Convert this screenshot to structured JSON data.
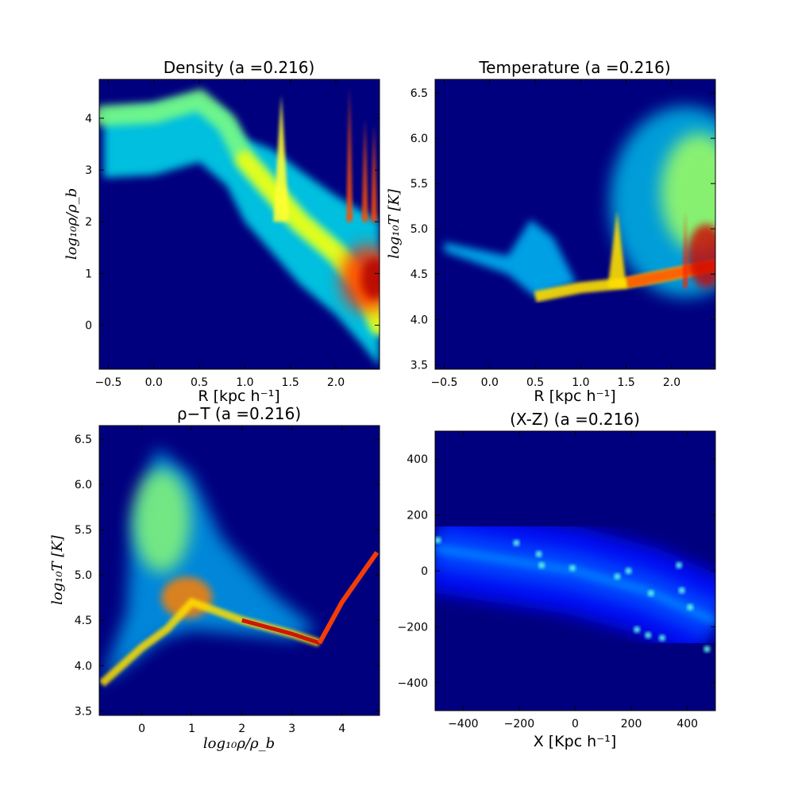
{
  "chart_data": [
    {
      "type": "heatmap",
      "title": "Density (a =0.216)",
      "xlabel": "R [kpc h⁻¹]",
      "ylabel": "log₁₀ρ/ρ_b",
      "xlim": [
        -0.6,
        2.48
      ],
      "ylim": [
        -0.85,
        4.75
      ],
      "xticks": [
        -0.5,
        0.0,
        0.5,
        1.0,
        1.5,
        2.0
      ],
      "xtick_labels": [
        "−0.5",
        "0.0",
        "0.5",
        "1.0",
        "1.5",
        "2.0"
      ],
      "yticks": [
        0,
        1,
        2,
        3,
        4
      ],
      "ytick_labels": [
        "0",
        "1",
        "2",
        "3",
        "4"
      ],
      "background": "#00007f",
      "ridge": [
        [
          -0.55,
          4.05
        ],
        [
          0.0,
          4.1
        ],
        [
          0.5,
          4.35
        ],
        [
          0.8,
          3.9
        ],
        [
          1.0,
          3.2
        ],
        [
          1.3,
          2.6
        ],
        [
          1.6,
          2.0
        ],
        [
          2.0,
          1.4
        ],
        [
          2.3,
          0.8
        ],
        [
          2.48,
          0.0
        ]
      ],
      "spikes": [
        [
          1.4,
          4.45
        ],
        [
          2.15,
          4.6
        ],
        [
          2.32,
          4.0
        ],
        [
          2.42,
          3.9
        ]
      ]
    },
    {
      "type": "heatmap",
      "title": "Temperature (a =0.216)",
      "xlabel": "R [kpc h⁻¹]",
      "ylabel": "log₁₀T  [K]",
      "xlim": [
        -0.6,
        2.48
      ],
      "ylim": [
        3.45,
        6.65
      ],
      "xticks": [
        -0.5,
        0.0,
        0.5,
        1.0,
        1.5,
        2.0
      ],
      "xtick_labels": [
        "−0.5",
        "0.0",
        "0.5",
        "1.0",
        "1.5",
        "2.0"
      ],
      "yticks": [
        3.5,
        4.0,
        4.5,
        5.0,
        5.5,
        6.0,
        6.5
      ],
      "ytick_labels": [
        "3.5",
        "4.0",
        "4.5",
        "5.0",
        "5.5",
        "6.0",
        "6.5"
      ],
      "background": "#00007f",
      "floor": [
        [
          0.5,
          4.25
        ],
        [
          1.0,
          4.35
        ],
        [
          1.5,
          4.4
        ],
        [
          2.0,
          4.5
        ],
        [
          2.48,
          4.6
        ]
      ],
      "spikes": [
        [
          1.4,
          5.2
        ],
        [
          2.15,
          5.2
        ]
      ]
    },
    {
      "type": "heatmap",
      "title": "ρ−T (a =0.216)",
      "xlabel": "log₁₀ρ/ρ_b",
      "ylabel": "log₁₀T  [K]",
      "xlim": [
        -0.85,
        4.75
      ],
      "ylim": [
        3.45,
        6.65
      ],
      "xticks": [
        0,
        1,
        2,
        3,
        4
      ],
      "xtick_labels": [
        "0",
        "1",
        "2",
        "3",
        "4"
      ],
      "yticks": [
        3.5,
        4.0,
        4.5,
        5.0,
        5.5,
        6.0,
        6.5
      ],
      "ytick_labels": [
        "3.5",
        "4.0",
        "4.5",
        "5.0",
        "5.5",
        "6.0",
        "6.5"
      ],
      "background": "#00007f",
      "track": [
        [
          -0.8,
          3.8
        ],
        [
          0.0,
          4.2
        ],
        [
          0.5,
          4.4
        ],
        [
          1.0,
          4.7
        ],
        [
          2.0,
          4.5
        ],
        [
          3.0,
          4.35
        ],
        [
          3.55,
          4.25
        ],
        [
          4.0,
          4.7
        ],
        [
          4.7,
          5.25
        ]
      ]
    },
    {
      "type": "heatmap",
      "title": "(X-Z) (a =0.216)",
      "xlabel": "X [Kpc h⁻¹]",
      "ylabel": "",
      "xlim": [
        -500,
        500
      ],
      "ylim": [
        -500,
        500
      ],
      "xticks": [
        -400,
        -200,
        0,
        200,
        400
      ],
      "xtick_labels": [
        "−400",
        "−200",
        "0",
        "200",
        "400"
      ],
      "yticks": [
        -400,
        -200,
        0,
        200,
        400
      ],
      "ytick_labels": [
        "−400",
        "−200",
        "0",
        "200",
        "400"
      ],
      "background": "#00007f",
      "filament": [
        [
          -500,
          80
        ],
        [
          -250,
          40
        ],
        [
          0,
          0
        ],
        [
          250,
          -70
        ],
        [
          500,
          -180
        ]
      ],
      "knots": [
        [
          -490,
          110
        ],
        [
          -210,
          100
        ],
        [
          -130,
          60
        ],
        [
          -120,
          20
        ],
        [
          -10,
          10
        ],
        [
          150,
          -20
        ],
        [
          190,
          0
        ],
        [
          270,
          -80
        ],
        [
          370,
          20
        ],
        [
          380,
          -70
        ],
        [
          410,
          -130
        ],
        [
          220,
          -210
        ],
        [
          260,
          -230
        ],
        [
          310,
          -240
        ],
        [
          470,
          -280
        ]
      ]
    }
  ]
}
